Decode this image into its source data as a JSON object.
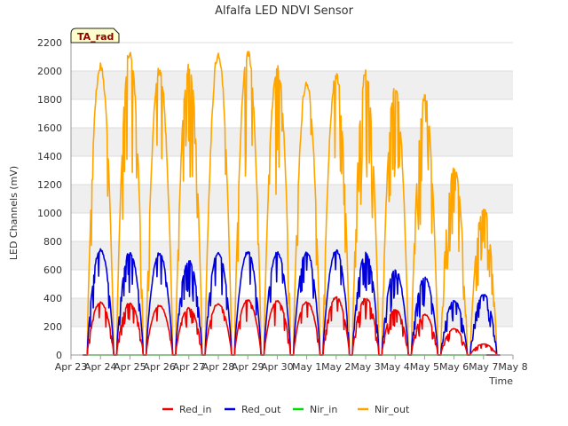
{
  "chart_data": {
    "type": "line",
    "title": "Alfalfa LED NDVI Sensor",
    "xlabel": "Time",
    "ylabel": "LED Channels (mV)",
    "badge": "TA_rad",
    "ylim": [
      0,
      2200
    ],
    "yticks": [
      0,
      200,
      400,
      600,
      800,
      1000,
      1200,
      1400,
      1600,
      1800,
      2000,
      2200
    ],
    "xlim": [
      0,
      15
    ],
    "xtick_labels": [
      "Apr 23",
      "Apr 24",
      "Apr 25",
      "Apr 26",
      "Apr 27",
      "Apr 28",
      "Apr 29",
      "Apr 30",
      "May 1",
      "May 2",
      "May 3",
      "May 4",
      "May 5",
      "May 6",
      "May 7",
      "May 8"
    ],
    "grid": true,
    "legend_position": "bottom",
    "day_peaks": {
      "Red_in": [
        380,
        375,
        355,
        340,
        370,
        395,
        390,
        385,
        415,
        410,
        330,
        290,
        190,
        80
      ],
      "Red_out": [
        760,
        740,
        730,
        680,
        740,
        740,
        740,
        745,
        750,
        735,
        620,
        555,
        390,
        440
      ],
      "Nir_in": [
        0,
        0,
        0,
        0,
        0,
        0,
        0,
        0,
        0,
        0,
        0,
        0,
        0,
        0
      ],
      "Nir_out": [
        2090,
        2190,
        2050,
        2085,
        2180,
        2180,
        2075,
        1975,
        2010,
        2040,
        1940,
        1855,
        1340,
        1065
      ]
    },
    "series": [
      {
        "name": "Red_in",
        "color": "#ee0000"
      },
      {
        "name": "Red_out",
        "color": "#0000dd"
      },
      {
        "name": "Nir_in",
        "color": "#00dd00"
      },
      {
        "name": "Nir_out",
        "color": "#ffa500"
      }
    ]
  }
}
